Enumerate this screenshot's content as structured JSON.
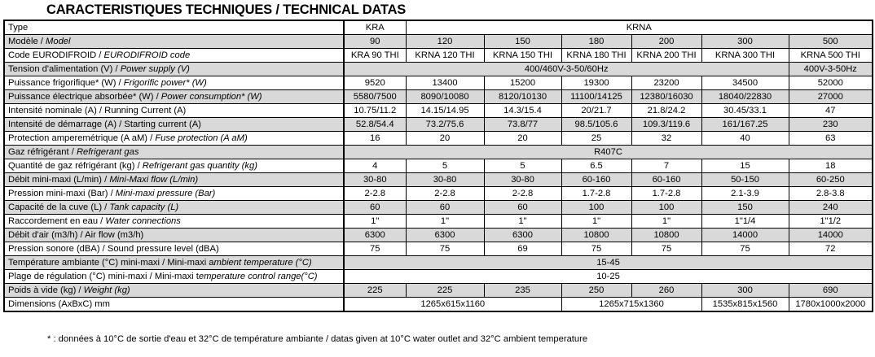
{
  "title": "CARACTERISTIQUES TECHNIQUES / TECHNICAL DATAS",
  "rows": [
    {
      "label": [
        {
          "t": "Type",
          "i": false
        }
      ],
      "cells": [
        {
          "v": "KRA",
          "s": 1
        },
        {
          "v": "KRNA",
          "s": 6
        }
      ]
    },
    {
      "label": [
        {
          "t": "Modèle / ",
          "i": false
        },
        {
          "t": "Model",
          "i": true
        }
      ],
      "cells": [
        {
          "v": "90",
          "s": 1
        },
        {
          "v": "120",
          "s": 1
        },
        {
          "v": "150",
          "s": 1
        },
        {
          "v": "180",
          "s": 1
        },
        {
          "v": "200",
          "s": 1
        },
        {
          "v": "300",
          "s": 1
        },
        {
          "v": "500",
          "s": 1
        }
      ]
    },
    {
      "label": [
        {
          "t": "Code EURODIFROID / ",
          "i": false
        },
        {
          "t": "EURODIFROID code",
          "i": true
        }
      ],
      "cells": [
        {
          "v": "KRA 90 THI",
          "s": 1
        },
        {
          "v": "KRNA 120 THI",
          "s": 1
        },
        {
          "v": "KRNA 150 THI",
          "s": 1
        },
        {
          "v": "KRNA 180 THI",
          "s": 1
        },
        {
          "v": "KRNA 200 THI",
          "s": 1
        },
        {
          "v": "KRNA 300 THI",
          "s": 1
        },
        {
          "v": "KRNA 500 THI",
          "s": 1
        }
      ]
    },
    {
      "label": [
        {
          "t": "Tension d'alimentation (V) / ",
          "i": false
        },
        {
          "t": "Power supply (V)",
          "i": true
        }
      ],
      "cells": [
        {
          "v": "400/460V-3-50/60Hz",
          "s": 6
        },
        {
          "v": "400V-3-50Hz",
          "s": 1
        }
      ]
    },
    {
      "label": [
        {
          "t": "Puissance frigorifique* (W) / ",
          "i": false
        },
        {
          "t": "Frigorific power* (W)",
          "i": true
        }
      ],
      "cells": [
        {
          "v": "9520",
          "s": 1
        },
        {
          "v": "13400",
          "s": 1
        },
        {
          "v": "15200",
          "s": 1
        },
        {
          "v": "19300",
          "s": 1
        },
        {
          "v": "23200",
          "s": 1
        },
        {
          "v": "34500",
          "s": 1
        },
        {
          "v": "52000",
          "s": 1
        }
      ]
    },
    {
      "label": [
        {
          "t": "Puissance électrique absorbée* (W) / ",
          "i": false
        },
        {
          "t": "Power consumption* (W)",
          "i": true
        }
      ],
      "cells": [
        {
          "v": "5580/7500",
          "s": 1
        },
        {
          "v": "8090/10080",
          "s": 1
        },
        {
          "v": "8120/10130",
          "s": 1
        },
        {
          "v": "11100/14125",
          "s": 1
        },
        {
          "v": "12380/16030",
          "s": 1
        },
        {
          "v": "18040/22830",
          "s": 1
        },
        {
          "v": "27000",
          "s": 1
        }
      ]
    },
    {
      "label": [
        {
          "t": "Intensité nominale (A) / Running Current (A)",
          "i": false
        }
      ],
      "cells": [
        {
          "v": "10.75/11.2",
          "s": 1
        },
        {
          "v": "14.15/14.95",
          "s": 1
        },
        {
          "v": "14.3/15.4",
          "s": 1
        },
        {
          "v": "20/21.7",
          "s": 1
        },
        {
          "v": "21.8/24.2",
          "s": 1
        },
        {
          "v": "30.45/33.1",
          "s": 1
        },
        {
          "v": "47",
          "s": 1
        }
      ]
    },
    {
      "label": [
        {
          "t": "Intensité de démarrage (A) / Starting current (A)",
          "i": false
        }
      ],
      "cells": [
        {
          "v": "52.8/54.4",
          "s": 1
        },
        {
          "v": "73.2/75.6",
          "s": 1
        },
        {
          "v": "73.8/77",
          "s": 1
        },
        {
          "v": "98.5/105.6",
          "s": 1
        },
        {
          "v": "109.3/119.6",
          "s": 1
        },
        {
          "v": "161/167.25",
          "s": 1
        },
        {
          "v": "230",
          "s": 1
        }
      ]
    },
    {
      "label": [
        {
          "t": "Protection amperemétrique (A aM) / ",
          "i": false
        },
        {
          "t": "Fuse protection (A aM)",
          "i": true
        }
      ],
      "cells": [
        {
          "v": "16",
          "s": 1
        },
        {
          "v": "20",
          "s": 1
        },
        {
          "v": "20",
          "s": 1
        },
        {
          "v": "25",
          "s": 1
        },
        {
          "v": "32",
          "s": 1
        },
        {
          "v": "40",
          "s": 1
        },
        {
          "v": "63",
          "s": 1
        }
      ]
    },
    {
      "label": [
        {
          "t": "Gaz réfrigérant / ",
          "i": false
        },
        {
          "t": "Refrigerant gas",
          "i": true
        }
      ],
      "cells": [
        {
          "v": "R407C",
          "s": 7
        }
      ]
    },
    {
      "label": [
        {
          "t": "Quantité de gaz réfrigérant (kg) / ",
          "i": false
        },
        {
          "t": "Refrigerant gas quantity (kg)",
          "i": true
        }
      ],
      "cells": [
        {
          "v": "4",
          "s": 1
        },
        {
          "v": "5",
          "s": 1
        },
        {
          "v": "5",
          "s": 1
        },
        {
          "v": "6.5",
          "s": 1
        },
        {
          "v": "7",
          "s": 1
        },
        {
          "v": "15",
          "s": 1
        },
        {
          "v": "18",
          "s": 1
        }
      ]
    },
    {
      "label": [
        {
          "t": "Débit mini-maxi (L/min) / ",
          "i": false
        },
        {
          "t": "Mini-Maxi flow (L/min)",
          "i": true
        }
      ],
      "cells": [
        {
          "v": "30-80",
          "s": 1
        },
        {
          "v": "30-80",
          "s": 1
        },
        {
          "v": "30-80",
          "s": 1
        },
        {
          "v": "60-160",
          "s": 1
        },
        {
          "v": "60-160",
          "s": 1
        },
        {
          "v": "50-150",
          "s": 1
        },
        {
          "v": "60-250",
          "s": 1
        }
      ]
    },
    {
      "label": [
        {
          "t": "Pression mini-maxi (Bar) / ",
          "i": false
        },
        {
          "t": "Mini-maxi pressure (Bar)",
          "i": true
        }
      ],
      "cells": [
        {
          "v": "2-2.8",
          "s": 1
        },
        {
          "v": "2-2.8",
          "s": 1
        },
        {
          "v": "2-2.8",
          "s": 1
        },
        {
          "v": "1.7-2.8",
          "s": 1
        },
        {
          "v": "1.7-2.8",
          "s": 1
        },
        {
          "v": "2.1-3.9",
          "s": 1
        },
        {
          "v": "2.8-3.8",
          "s": 1
        }
      ]
    },
    {
      "label": [
        {
          "t": "Capacité de la cuve (L) / ",
          "i": false
        },
        {
          "t": "Tank capacity (L)",
          "i": true
        }
      ],
      "cells": [
        {
          "v": "60",
          "s": 1
        },
        {
          "v": "60",
          "s": 1
        },
        {
          "v": "60",
          "s": 1
        },
        {
          "v": "100",
          "s": 1
        },
        {
          "v": "100",
          "s": 1
        },
        {
          "v": "150",
          "s": 1
        },
        {
          "v": "240",
          "s": 1
        }
      ]
    },
    {
      "label": [
        {
          "t": "Raccordement en eau / ",
          "i": false
        },
        {
          "t": "Water connections",
          "i": true
        }
      ],
      "cells": [
        {
          "v": "1\"",
          "s": 1
        },
        {
          "v": "1\"",
          "s": 1
        },
        {
          "v": "1\"",
          "s": 1
        },
        {
          "v": "1\"",
          "s": 1
        },
        {
          "v": "1\"",
          "s": 1
        },
        {
          "v": "1\"1/4",
          "s": 1
        },
        {
          "v": "1\"1/2",
          "s": 1
        }
      ]
    },
    {
      "label": [
        {
          "t": "Débit d'air (m3/h) / Air flow (m3/h)",
          "i": false
        }
      ],
      "cells": [
        {
          "v": "6300",
          "s": 1
        },
        {
          "v": "6300",
          "s": 1
        },
        {
          "v": "6300",
          "s": 1
        },
        {
          "v": "10800",
          "s": 1
        },
        {
          "v": "10800",
          "s": 1
        },
        {
          "v": "14000",
          "s": 1
        },
        {
          "v": "14000",
          "s": 1
        }
      ]
    },
    {
      "label": [
        {
          "t": "Pression sonore (dBA) / Sound pressure level (dBA)",
          "i": false
        }
      ],
      "cells": [
        {
          "v": "75",
          "s": 1
        },
        {
          "v": "75",
          "s": 1
        },
        {
          "v": "69",
          "s": 1
        },
        {
          "v": "75",
          "s": 1
        },
        {
          "v": "75",
          "s": 1
        },
        {
          "v": "75",
          "s": 1
        },
        {
          "v": "72",
          "s": 1
        }
      ]
    },
    {
      "label": [
        {
          "t": "Température ambiante (°C) mini-maxi / Mini-maxi a",
          "i": false
        },
        {
          "t": "mbient temperature (°C)",
          "i": true
        }
      ],
      "cells": [
        {
          "v": "15-45",
          "s": 7
        }
      ]
    },
    {
      "label": [
        {
          "t": "Plage de régulation (°C) mini-maxi / Mini-maxi t",
          "i": false
        },
        {
          "t": "emperature control range(°C)",
          "i": true
        }
      ],
      "cells": [
        {
          "v": "10-25",
          "s": 7
        }
      ]
    },
    {
      "label": [
        {
          "t": "Poids à vide (kg) / ",
          "i": false
        },
        {
          "t": "Weight (kg)",
          "i": true
        }
      ],
      "cells": [
        {
          "v": "225",
          "s": 1
        },
        {
          "v": "225",
          "s": 1
        },
        {
          "v": "235",
          "s": 1
        },
        {
          "v": "250",
          "s": 1
        },
        {
          "v": "260",
          "s": 1
        },
        {
          "v": "300",
          "s": 1
        },
        {
          "v": "690",
          "s": 1
        }
      ]
    },
    {
      "label": [
        {
          "t": "Dimensions (AxBxC) mm",
          "i": false
        }
      ],
      "cells": [
        {
          "v": "1265x615x1160",
          "s": 3
        },
        {
          "v": "1265x715x1360",
          "s": 2
        },
        {
          "v": "1535x815x1560",
          "s": 1
        },
        {
          "v": "1780x1000x2000",
          "s": 1
        }
      ]
    }
  ],
  "footnote": "* : données à 10°C de sortie d'eau et 32°C de température ambiante / datas given at 10°C water outlet and 32°C ambient temperature",
  "colors": {
    "stripe": "#d9d9d9",
    "border": "#000000"
  }
}
